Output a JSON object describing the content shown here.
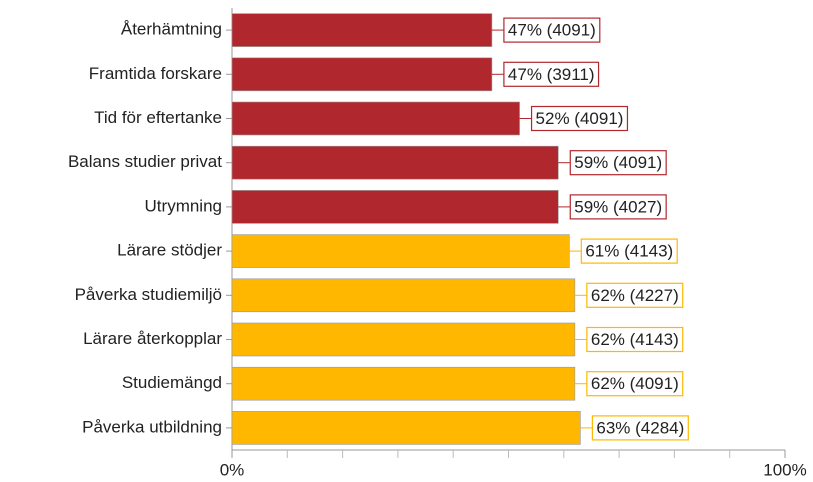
{
  "chart_data": {
    "type": "barh",
    "categories": [
      "Återhämtning",
      "Framtida forskare",
      "Tid för eftertanke",
      "Balans studier privat",
      "Utrymning",
      "Lärare stödjer",
      "Påverka studiemiljö",
      "Lärare återkopplar",
      "Studiemängd",
      "Påverka utbildning"
    ],
    "values": [
      47,
      47,
      52,
      59,
      59,
      61,
      62,
      62,
      62,
      63
    ],
    "value_labels": [
      "47% (4091)",
      "47% (3911)",
      "52% (4091)",
      "59% (4091)",
      "59% (4027)",
      "61% (4143)",
      "62% (4227)",
      "62% (4143)",
      "62% (4091)",
      "63% (4284)"
    ],
    "colors": [
      "#b0282d",
      "#b0282d",
      "#b0282d",
      "#b0282d",
      "#b0282d",
      "#ffb700",
      "#ffb700",
      "#ffb700",
      "#ffb700",
      "#ffb700"
    ],
    "xlim": [
      0,
      100
    ],
    "xticks": [
      {
        "value": 0,
        "label": "0%"
      },
      {
        "value": 100,
        "label": "100%"
      }
    ],
    "xminorticks": [
      10,
      20,
      30,
      40,
      50,
      60,
      70,
      80,
      90
    ]
  }
}
